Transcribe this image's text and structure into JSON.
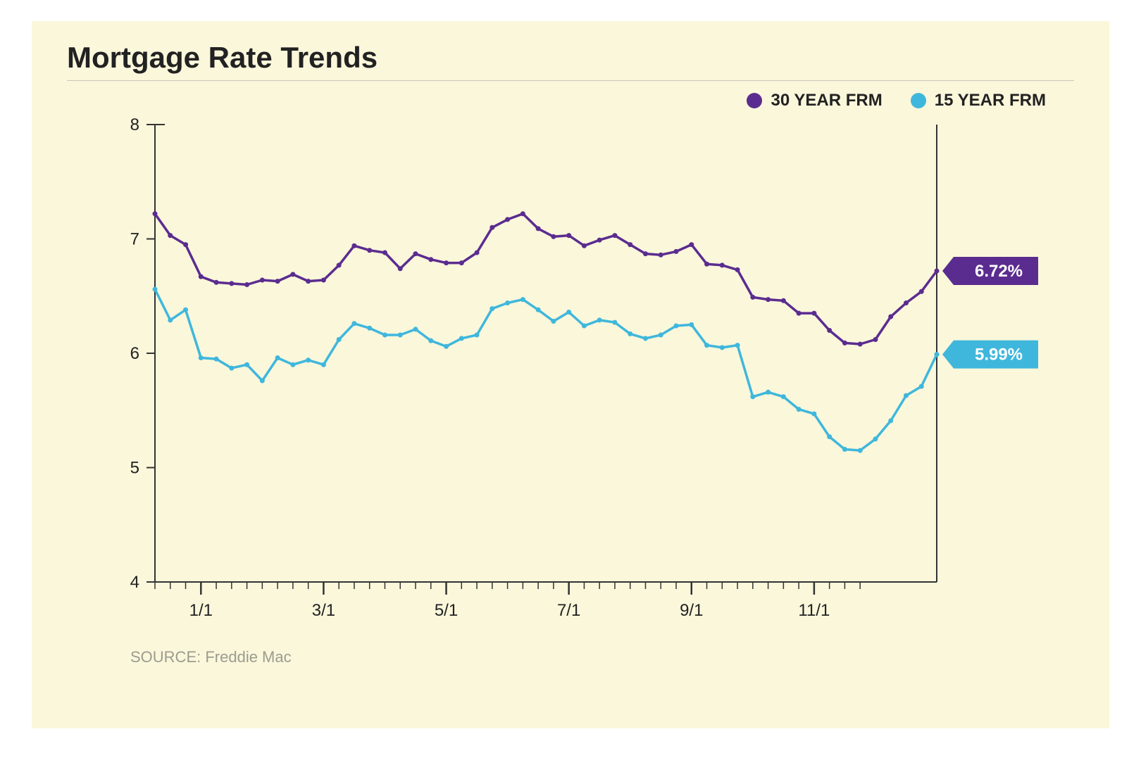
{
  "title": "Mortgage Rate Trends",
  "source_label": "SOURCE: Freddie Mac",
  "background_color": "#faf7db",
  "chart": {
    "type": "line",
    "ylim": [
      4,
      8
    ],
    "yticks": [
      4,
      5,
      6,
      7,
      8
    ],
    "ytick_fontsize": 24,
    "xtick_labels": [
      "1/1",
      "3/1",
      "5/1",
      "7/1",
      "9/1",
      "11/1"
    ],
    "xtick_major_indices": [
      3,
      11,
      19,
      27,
      35,
      43
    ],
    "xtick_minor_count": 47,
    "xtick_fontsize": 24,
    "axis_color": "#333333",
    "tick_color": "#333333",
    "line_width": 3.5,
    "marker_radius": 3.5,
    "series": [
      {
        "name": "30 YEAR FRM",
        "color": "#5b2c8f",
        "end_label": "6.72%",
        "values": [
          7.22,
          7.03,
          6.95,
          6.67,
          6.62,
          6.61,
          6.6,
          6.64,
          6.63,
          6.69,
          6.63,
          6.64,
          6.77,
          6.94,
          6.9,
          6.88,
          6.74,
          6.87,
          6.82,
          6.79,
          6.79,
          6.88,
          7.1,
          7.17,
          7.22,
          7.09,
          7.02,
          7.03,
          6.94,
          6.99,
          7.03,
          6.95,
          6.87,
          6.86,
          6.89,
          6.95,
          6.78,
          6.77,
          6.73,
          6.49,
          6.47,
          6.46,
          6.35,
          6.35,
          6.2,
          6.09,
          6.08,
          6.12,
          6.32,
          6.44,
          6.54,
          6.72
        ]
      },
      {
        "name": "15 YEAR FRM",
        "color": "#3fb7dc",
        "end_label": "5.99%",
        "values": [
          6.56,
          6.29,
          6.38,
          5.96,
          5.95,
          5.87,
          5.9,
          5.76,
          5.96,
          5.9,
          5.94,
          5.9,
          6.12,
          6.26,
          6.22,
          6.16,
          6.16,
          6.21,
          6.11,
          6.06,
          6.13,
          6.16,
          6.39,
          6.44,
          6.47,
          6.38,
          6.28,
          6.36,
          6.24,
          6.29,
          6.27,
          6.17,
          6.13,
          6.16,
          6.24,
          6.25,
          6.07,
          6.05,
          6.07,
          5.62,
          5.66,
          5.62,
          5.51,
          5.47,
          5.27,
          5.16,
          5.15,
          5.25,
          5.41,
          5.63,
          5.71,
          5.99
        ]
      }
    ],
    "legend_dot_radius": 11
  }
}
